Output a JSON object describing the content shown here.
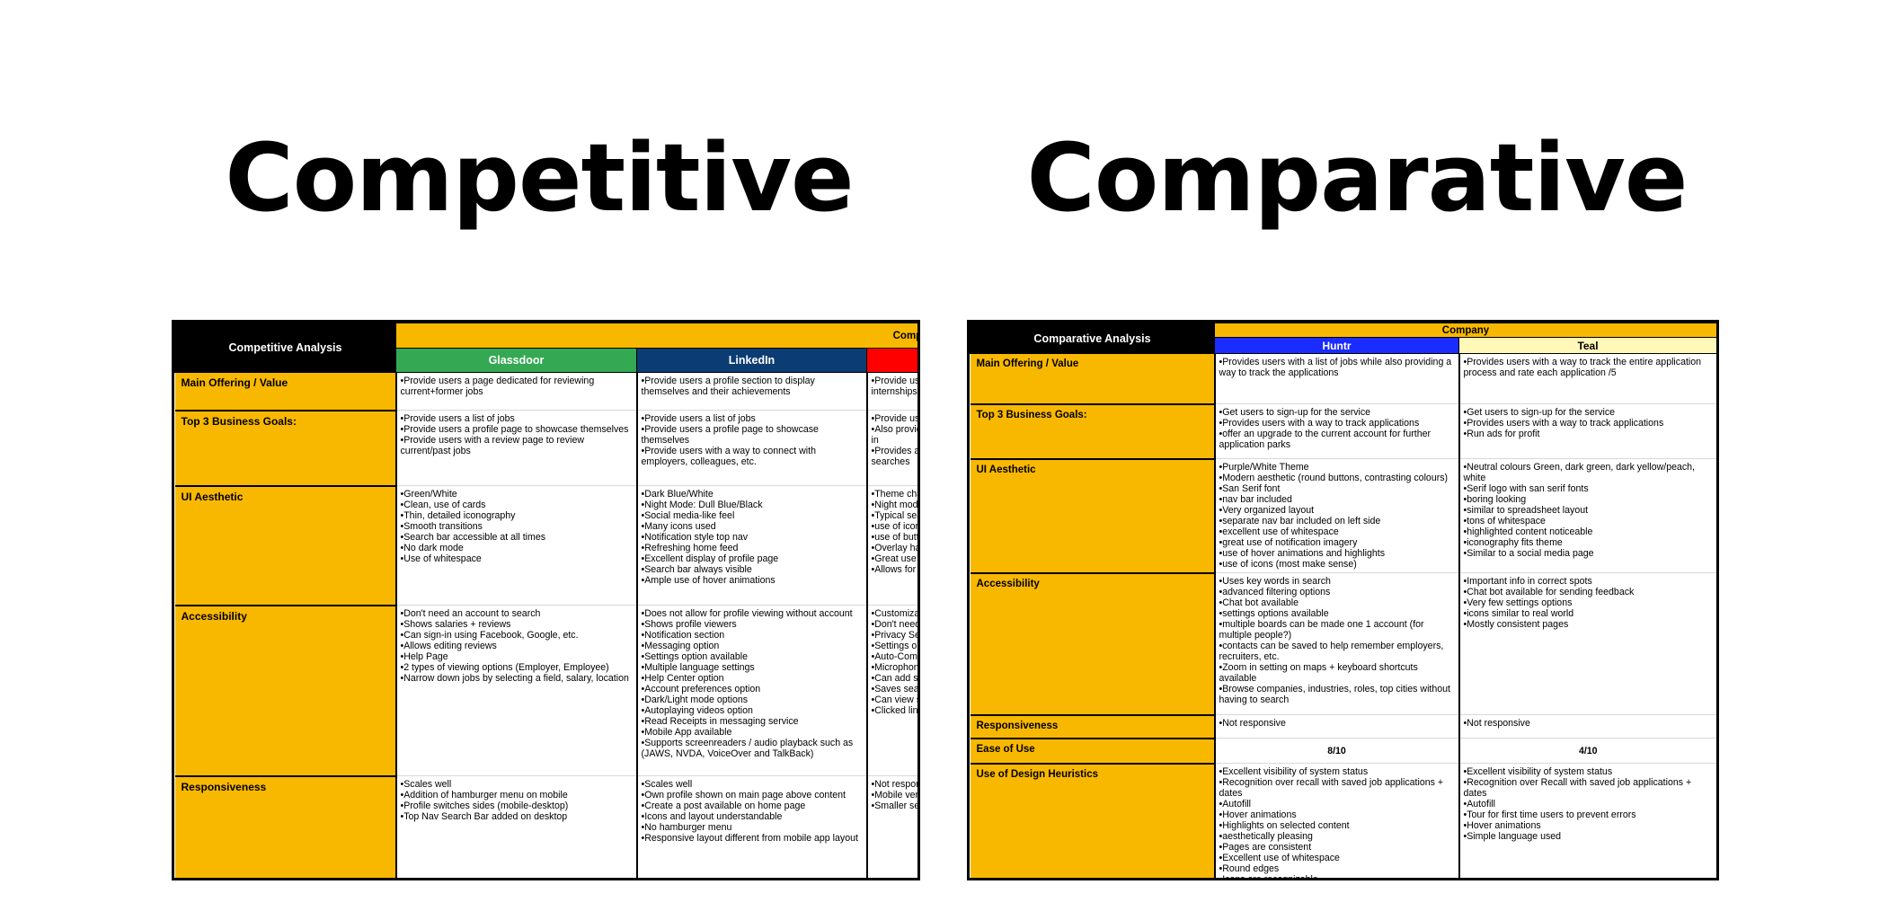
{
  "titles": {
    "left": "Competitive",
    "right": "Comparative"
  },
  "competitive": {
    "table_title": "Competitive Analysis",
    "company_label": "Company",
    "companies": [
      {
        "name": "Glassdoor",
        "color": "#34a853"
      },
      {
        "name": "LinkedIn",
        "color": "#0b3c73"
      },
      {
        "name": "",
        "color": "#ff0000"
      }
    ],
    "rows": [
      {
        "label": "Main Offering / Value",
        "cells": [
          "•Provide users a page dedicated for reviewing current+former jobs",
          "•Provide users a profile section to display themselves and their achievements",
          "•Provide use\ninternships,"
        ]
      },
      {
        "label": "Top 3 Business Goals:",
        "cells": [
          "•Provide users a list of jobs\n•Provide users a profile page to showcase themselves\n•Provide users with a review page to review current/past jobs",
          "•Provide users a list of jobs\n•Provide users a profile page to showcase themselves\n•Provide users with a way to connect with employers, colleagues, etc.",
          "•Provide use\n•Also provide\nin\n•Provides a\nsearches"
        ]
      },
      {
        "label": "UI Aesthetic",
        "cells": [
          "•Green/White\n•Clean, use of cards\n•Thin, detailed iconography\n•Smooth transitions\n•Search bar accessible at all times\n•No dark mode\n•Use of whitespace",
          "•Dark Blue/White\n•Night Mode: Dull Blue/Black\n•Social media-like feel\n•Many icons used\n•Notification style top nav\n•Refreshing home feed\n•Excellent display of profile page\n•Search bar always visible\n•Ample use of hover animations",
          "•Theme cha\n•Night mode\n•Typical sea\n•use of icons\n•use of butto\n•Overlay har\n•Great use c\n•Allows for ir"
        ]
      },
      {
        "label": "Accessibility",
        "cells": [
          "•Don't need an account to search\n•Shows salaries + reviews\n•Can sign-in using Facebook, Google, etc.\n•Allows editing reviews\n•Help Page\n•2 types of viewing options (Employer, Employee)\n•Narrow down jobs by selecting a field, salary, location",
          "•Does not allow for profile viewing without account\n•Shows profile viewers\n•Notification section\n•Messaging option\n•Settings option available\n•Multiple language settings\n•Help Center option\n•Account preferences option\n•Dark/Light mode options\n•Autoplaying videos option\n•Read Receipts in messaging service\n•Mobile App available\n•Supports screenreaders / audio playback such as (JAWS, NVDA, VoiceOver and TalkBack)",
          "•Customizab\n•Don't need\n•Privacy Set\n•Settings opt\n•Auto-Comp\n•Microphone\n•Can add sh\n•Saves sear\n•Can view se\n•Clicked link"
        ]
      },
      {
        "label": "Responsiveness",
        "cells": [
          "•Scales well\n•Addition of hamburger menu on mobile\n•Profile switches sides (mobile-desktop)\n•Top Nav Search Bar added on desktop",
          "•Scales well\n•Own profile shown on main page above content\n•Create a post available on home page\n•Icons and layout understandable\n•No hamburger menu\n•Responsive layout different from mobile app layout",
          "•Not respons\n•Mobile vers\n•Smaller sea"
        ]
      }
    ]
  },
  "comparative": {
    "table_title": "Comparative Analysis",
    "company_label": "Company",
    "companies": [
      {
        "name": "Huntr",
        "color": "#1a2cff"
      },
      {
        "name": "Teal",
        "color": "#fff8b8"
      }
    ],
    "rows": [
      {
        "label": "Main Offering / Value",
        "cells": [
          "•Provides users with a list of jobs while also providing a way to track the applications",
          "•Provides users with a way to track the entire application process and rate each application /5"
        ]
      },
      {
        "label": "Top 3 Business Goals:",
        "cells": [
          "•Get users to sign-up for the service\n•Provides users with a way to track applications\n•offer an upgrade to the current account for further application parks",
          "•Get users to sign-up for the service\n•Provides users with a way to track applications\n•Run ads for profit"
        ]
      },
      {
        "label": "UI Aesthetic",
        "cells": [
          "•Purple/White Theme\n•Modern aesthetic (round buttons, contrasting colours)\n•San Serif font\n•nav bar included\n•Very organized layout\n•separate nav bar included on left side\n•excellent use of whitespace\n•great use of notification imagery\n•use of hover animations and highlights\n•use of icons (most make sense)",
          "•Neutral colours Green, dark green, dark yellow/peach, white\n•Serif logo with san serif fonts\n•boring looking\n•similar to spreadsheet layout\n•tons of whitespace\n•highlighted content noticeable\n•iconography fits theme\n•Similar to a social media page"
        ]
      },
      {
        "label": "Accessibility",
        "cells": [
          "•Uses key words in search\n•advanced filtering options\n•Chat bot available\n•settings options available\n•multiple boards can be made one 1 account (for multiple people?)\n•contacts can be saved to help remember employers, recruiters, etc.\n•Zoom in setting on maps + keyboard shortcuts available\n•Browse companies, industries, roles, top cities without having to search",
          "•Important info in correct spots\n•Chat bot available for sending feedback\n•Very few settings options\n•icons similar to real world\n•Mostly consistent pages"
        ]
      },
      {
        "label": "Responsiveness",
        "cells": [
          "•Not responsive",
          "•Not responsive"
        ]
      },
      {
        "label": "Ease of Use",
        "cells": [
          "8/10",
          "4/10"
        ]
      },
      {
        "label": "Use of Design Heuristics",
        "cells": [
          "•Excellent visibility of system status\n•Recognition over recall with saved job applications + dates\n•Autofill\n•Hover animations\n•Highlights on selected content\n•aesthetically pleasing\n•Pages are consistent\n•Excellent use of whitespace\n•Round edges\n•Icons are recognizable\n•Little to no room for user error",
          "•Excellent visibility of system status\n•Recognition over Recall with saved job applications + dates\n•Autofill\n•Tour for first time users to prevent errors\n•Hover animations\n•Simple language used"
        ]
      }
    ]
  }
}
